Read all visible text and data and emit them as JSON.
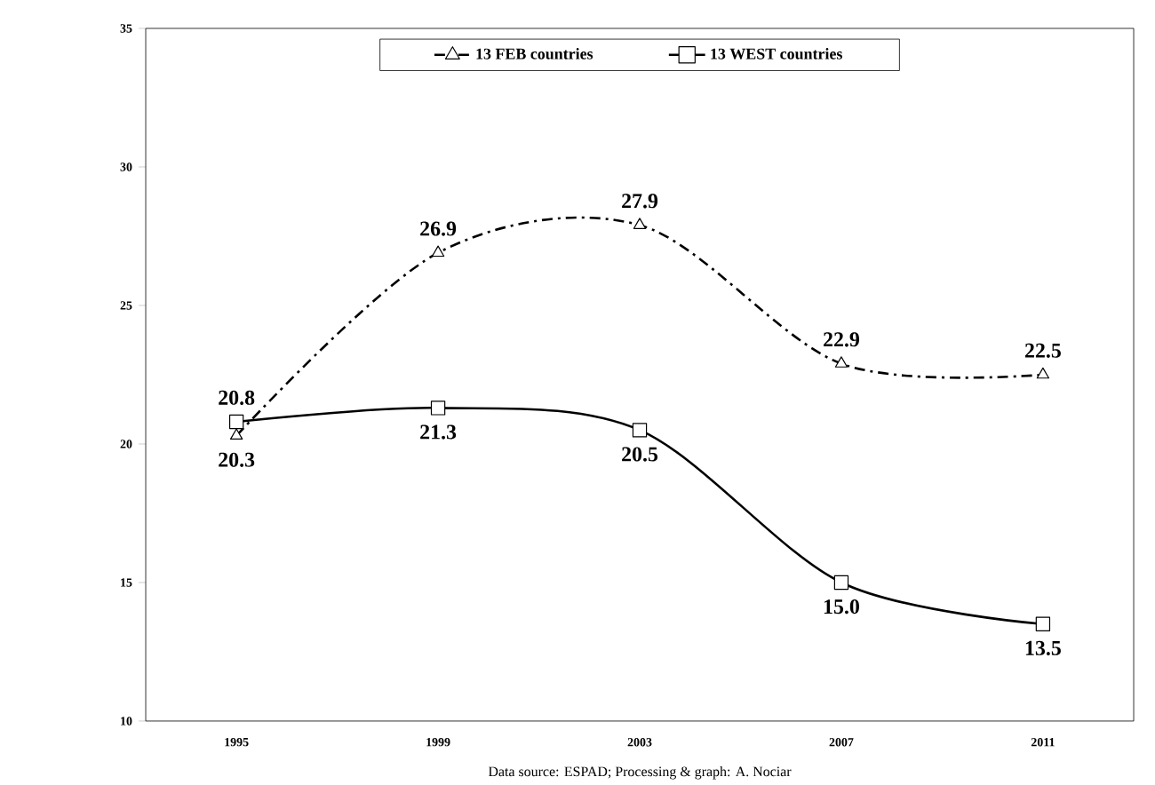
{
  "chart_data": {
    "type": "line",
    "categories": [
      "1995",
      "1999",
      "2003",
      "2007",
      "2011"
    ],
    "series": [
      {
        "name": "13 FEB countries",
        "color": "#000000",
        "values": [
          20.3,
          26.9,
          27.9,
          22.9,
          22.5
        ],
        "value_labels": [
          "20.3",
          "26.9",
          "27.9",
          "22.9",
          "22.5"
        ],
        "marker": "triangle",
        "line_style": "dashdot"
      },
      {
        "name": "13 WEST countries",
        "color": "#000000",
        "values": [
          20.8,
          21.3,
          20.5,
          15.0,
          13.5
        ],
        "value_labels": [
          "20.8",
          "21.3",
          "20.5",
          "15.0",
          "13.5"
        ],
        "marker": "square",
        "line_style": "solid"
      }
    ],
    "ylim": [
      10,
      35
    ],
    "yticks": [
      10,
      15,
      20,
      25,
      30,
      35
    ],
    "grid": false,
    "legend": "top",
    "annotations": [
      "Data source: ESPAD; Processing & graph: A. Nociar"
    ]
  }
}
